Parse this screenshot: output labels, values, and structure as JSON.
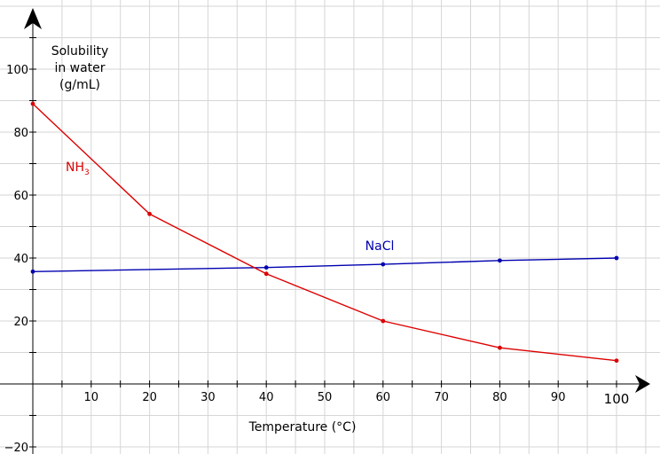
{
  "chart_data": {
    "type": "line",
    "xlabel": "Temperature (°C)",
    "ylabel_lines": [
      "Solubility",
      "in water",
      "(g/mL)"
    ],
    "xlim": [
      -5,
      105
    ],
    "ylim": [
      -20,
      120
    ],
    "x_tick_labels": [
      {
        "value": 10,
        "label": "10"
      },
      {
        "value": 20,
        "label": "20"
      },
      {
        "value": 30,
        "label": "30"
      },
      {
        "value": 40,
        "label": "40"
      },
      {
        "value": 50,
        "label": "50"
      },
      {
        "value": 60,
        "label": "60"
      },
      {
        "value": 70,
        "label": "70"
      },
      {
        "value": 80,
        "label": "80"
      },
      {
        "value": 90,
        "label": "90"
      },
      {
        "value": 100,
        "label": "100"
      }
    ],
    "y_tick_labels": [
      {
        "value": -20,
        "label": "−20"
      },
      {
        "value": 20,
        "label": "20"
      },
      {
        "value": 40,
        "label": "40"
      },
      {
        "value": 60,
        "label": "60"
      },
      {
        "value": 80,
        "label": "80"
      },
      {
        "value": 100,
        "label": "100"
      }
    ],
    "grid": true,
    "series": [
      {
        "name": "NaCl",
        "color": "#0000b0",
        "points": [
          [
            0,
            35.7
          ],
          [
            40,
            37.0
          ],
          [
            60,
            38.0
          ],
          [
            80,
            39.2
          ],
          [
            100,
            40.0
          ]
        ]
      },
      {
        "name": "NH",
        "name_subscript": "3",
        "color": "#dd0000",
        "points": [
          [
            0,
            89
          ],
          [
            20,
            54
          ],
          [
            40,
            35
          ],
          [
            60,
            20
          ],
          [
            80,
            11.5
          ],
          [
            100,
            7.4
          ]
        ]
      }
    ]
  }
}
